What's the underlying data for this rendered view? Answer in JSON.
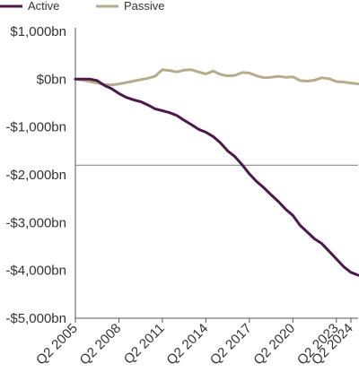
{
  "chart_data": {
    "type": "line",
    "title": "",
    "xlabel": "",
    "ylabel": "",
    "ylim": [
      -5000,
      1000
    ],
    "y_ticks": [
      1000,
      0,
      -1000,
      -2000,
      -3000,
      -4000,
      -5000
    ],
    "y_tick_labels": [
      "$1,000bn",
      "$0bn",
      "-$1,000bn",
      "-$2,000bn",
      "-$3,000bn",
      "-$4,000bn",
      "-$5,000bn"
    ],
    "x_range": [
      2005.25,
      2024.75
    ],
    "x_ticks": [
      2005.25,
      2008.25,
      2011.25,
      2014.25,
      2017.25,
      2020.25,
      2023.25,
      2024.25
    ],
    "x_tick_labels": [
      "Q2 2005",
      "Q2 2008",
      "Q2 2011",
      "Q2 2014",
      "Q2 2017",
      "Q2 2020",
      "Q2 2023",
      "Q2 2024"
    ],
    "reference_line_y": -1800,
    "grid": false,
    "legend_position": "top-left",
    "series": [
      {
        "name": "Active",
        "color": "#4a1a4a",
        "points": [
          [
            2005.25,
            0
          ],
          [
            2005.75,
            0
          ],
          [
            2006.25,
            0
          ],
          [
            2006.75,
            -30
          ],
          [
            2007.25,
            -130
          ],
          [
            2007.75,
            -200
          ],
          [
            2008.25,
            -300
          ],
          [
            2008.75,
            -380
          ],
          [
            2009.25,
            -430
          ],
          [
            2009.75,
            -470
          ],
          [
            2010.25,
            -540
          ],
          [
            2010.75,
            -620
          ],
          [
            2011.25,
            -660
          ],
          [
            2011.75,
            -700
          ],
          [
            2012.25,
            -760
          ],
          [
            2012.75,
            -860
          ],
          [
            2013.25,
            -950
          ],
          [
            2013.75,
            -1050
          ],
          [
            2014.25,
            -1110
          ],
          [
            2014.75,
            -1200
          ],
          [
            2015.25,
            -1330
          ],
          [
            2015.75,
            -1500
          ],
          [
            2016.25,
            -1620
          ],
          [
            2016.75,
            -1790
          ],
          [
            2017.25,
            -1980
          ],
          [
            2017.75,
            -2140
          ],
          [
            2018.25,
            -2270
          ],
          [
            2018.75,
            -2420
          ],
          [
            2019.25,
            -2560
          ],
          [
            2019.75,
            -2720
          ],
          [
            2020.25,
            -2850
          ],
          [
            2020.75,
            -3060
          ],
          [
            2021.25,
            -3200
          ],
          [
            2021.75,
            -3340
          ],
          [
            2022.25,
            -3440
          ],
          [
            2022.75,
            -3600
          ],
          [
            2023.25,
            -3760
          ],
          [
            2023.75,
            -3920
          ],
          [
            2024.25,
            -4040
          ],
          [
            2024.75,
            -4100
          ]
        ]
      },
      {
        "name": "Passive",
        "color": "#b5ad8a",
        "points": [
          [
            2005.25,
            0
          ],
          [
            2005.75,
            -20
          ],
          [
            2006.25,
            -50
          ],
          [
            2006.75,
            -80
          ],
          [
            2007.25,
            -110
          ],
          [
            2007.75,
            -120
          ],
          [
            2008.25,
            -100
          ],
          [
            2008.75,
            -70
          ],
          [
            2009.25,
            -40
          ],
          [
            2009.75,
            -10
          ],
          [
            2010.25,
            20
          ],
          [
            2010.75,
            60
          ],
          [
            2011.25,
            200
          ],
          [
            2011.75,
            180
          ],
          [
            2012.25,
            150
          ],
          [
            2012.75,
            190
          ],
          [
            2013.25,
            200
          ],
          [
            2013.75,
            150
          ],
          [
            2014.25,
            110
          ],
          [
            2014.75,
            170
          ],
          [
            2015.25,
            100
          ],
          [
            2015.75,
            70
          ],
          [
            2016.25,
            80
          ],
          [
            2016.75,
            140
          ],
          [
            2017.25,
            130
          ],
          [
            2017.75,
            70
          ],
          [
            2018.25,
            30
          ],
          [
            2018.75,
            40
          ],
          [
            2019.25,
            60
          ],
          [
            2019.75,
            40
          ],
          [
            2020.25,
            50
          ],
          [
            2020.75,
            -30
          ],
          [
            2021.25,
            -40
          ],
          [
            2021.75,
            -20
          ],
          [
            2022.25,
            30
          ],
          [
            2022.75,
            10
          ],
          [
            2023.25,
            -50
          ],
          [
            2023.75,
            -60
          ],
          [
            2024.25,
            -80
          ],
          [
            2024.75,
            -100
          ]
        ]
      }
    ]
  }
}
